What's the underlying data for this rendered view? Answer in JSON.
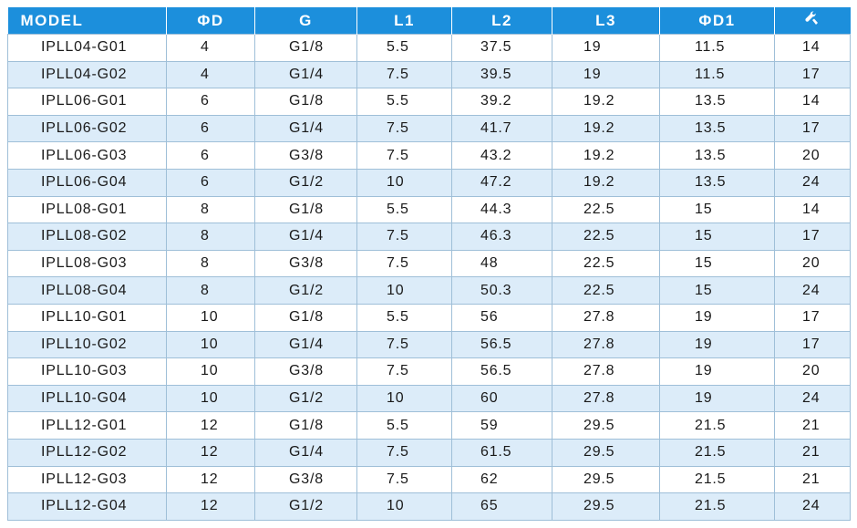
{
  "table": {
    "headers": [
      "MODEL",
      "ΦD",
      "G",
      "L1",
      "L2",
      "L3",
      "ΦD1"
    ],
    "wrench_header_icon": "wrench-icon",
    "rows": [
      [
        "IPLL04-G01",
        "4",
        "G1/8",
        "5.5",
        "37.5",
        "19",
        "11.5",
        "14"
      ],
      [
        "IPLL04-G02",
        "4",
        "G1/4",
        "7.5",
        "39.5",
        "19",
        "11.5",
        "17"
      ],
      [
        "IPLL06-G01",
        "6",
        "G1/8",
        "5.5",
        "39.2",
        "19.2",
        "13.5",
        "14"
      ],
      [
        "IPLL06-G02",
        "6",
        "G1/4",
        "7.5",
        "41.7",
        "19.2",
        "13.5",
        "17"
      ],
      [
        "IPLL06-G03",
        "6",
        "G3/8",
        "7.5",
        "43.2",
        "19.2",
        "13.5",
        "20"
      ],
      [
        "IPLL06-G04",
        "6",
        "G1/2",
        "10",
        "47.2",
        "19.2",
        "13.5",
        "24"
      ],
      [
        "IPLL08-G01",
        "8",
        "G1/8",
        "5.5",
        "44.3",
        "22.5",
        "15",
        "14"
      ],
      [
        "IPLL08-G02",
        "8",
        "G1/4",
        "7.5",
        "46.3",
        "22.5",
        "15",
        "17"
      ],
      [
        "IPLL08-G03",
        "8",
        "G3/8",
        "7.5",
        "48",
        "22.5",
        "15",
        "20"
      ],
      [
        "IPLL08-G04",
        "8",
        "G1/2",
        "10",
        "50.3",
        "22.5",
        "15",
        "24"
      ],
      [
        "IPLL10-G01",
        "10",
        "G1/8",
        "5.5",
        "56",
        "27.8",
        "19",
        "17"
      ],
      [
        "IPLL10-G02",
        "10",
        "G1/4",
        "7.5",
        "56.5",
        "27.8",
        "19",
        "17"
      ],
      [
        "IPLL10-G03",
        "10",
        "G3/8",
        "7.5",
        "56.5",
        "27.8",
        "19",
        "20"
      ],
      [
        "IPLL10-G04",
        "10",
        "G1/2",
        "10",
        "60",
        "27.8",
        "19",
        "24"
      ],
      [
        "IPLL12-G01",
        "12",
        "G1/8",
        "5.5",
        "59",
        "29.5",
        "21.5",
        "21"
      ],
      [
        "IPLL12-G02",
        "12",
        "G1/4",
        "7.5",
        "61.5",
        "29.5",
        "21.5",
        "21"
      ],
      [
        "IPLL12-G03",
        "12",
        "G3/8",
        "7.5",
        "62",
        "29.5",
        "21.5",
        "21"
      ],
      [
        "IPLL12-G04",
        "12",
        "G1/2",
        "10",
        "65",
        "29.5",
        "21.5",
        "24"
      ]
    ]
  },
  "colors": {
    "header_bg": "#1c8fdc",
    "header_text": "#ffffff",
    "row_alt_bg": "#dcecf9",
    "row_bg": "#ffffff",
    "grid": "#9fbfd8"
  }
}
